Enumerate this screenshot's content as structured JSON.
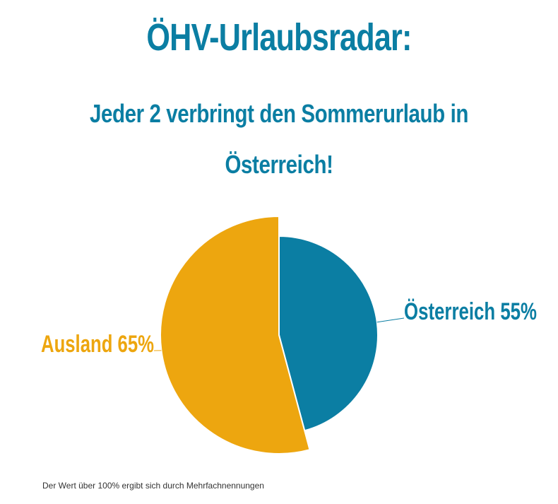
{
  "title": "ÖHV-Urlaubsradar:",
  "subtitle_line1": "Jeder 2 verbringt den Sommerurlaub in",
  "subtitle_line2": "Österreich!",
  "footnote": "Der Wert über 100% ergibt sich durch Mehrfachnennungen",
  "colors": {
    "title": "#0b7ea3",
    "osterreich": "#0b7ea3",
    "ausland": "#eda60f"
  },
  "chart_data": {
    "type": "pie",
    "slices": [
      {
        "label": "Österreich 55%",
        "value": 55,
        "color": "#0b7ea3"
      },
      {
        "label": "Ausland 65%",
        "value": 65,
        "color": "#eda60f"
      }
    ]
  }
}
